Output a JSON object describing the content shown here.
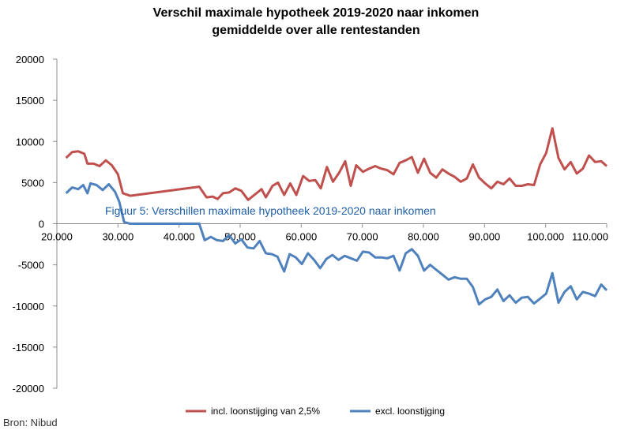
{
  "chart_data": {
    "type": "line",
    "title_lines": [
      "Verschil maximale hypotheek 2019-2020 naar inkomen",
      "gemiddelde over alle rentestanden"
    ],
    "annotation": "Figuur 5: Verschillen maximale hypotheek 2019-2020 naar inkomen",
    "source": "Bron: Nibud",
    "xlim": [
      20000,
      110000
    ],
    "ylim": [
      -20000,
      20000
    ],
    "x_ticks": [
      20000,
      30000,
      40000,
      50000,
      60000,
      70000,
      80000,
      90000,
      100000,
      110000
    ],
    "x_tick_labels": [
      "20.000",
      "30.000",
      "40.000",
      "50.000",
      "60.000",
      "70.000",
      "80.000",
      "90.000",
      "100.000",
      "110.000"
    ],
    "y_ticks": [
      20000,
      15000,
      10000,
      5000,
      0,
      -5000,
      -10000,
      -15000,
      -20000
    ],
    "y_tick_labels": [
      "20000",
      "15000",
      "10000",
      "5000",
      "0",
      "-5000",
      "-10000",
      "-15000",
      "-20000"
    ],
    "grid": false,
    "legend_position": "bottom",
    "series": [
      {
        "name": "incl. loonstijging van 2,5%",
        "color": "#c0504d",
        "points": [
          [
            21500,
            8000
          ],
          [
            22500,
            8700
          ],
          [
            23500,
            8800
          ],
          [
            24500,
            8500
          ],
          [
            25000,
            7300
          ],
          [
            26000,
            7300
          ],
          [
            27000,
            7000
          ],
          [
            28000,
            7700
          ],
          [
            29000,
            7100
          ],
          [
            30000,
            6000
          ],
          [
            30800,
            3700
          ],
          [
            32000,
            3400
          ],
          [
            43300,
            4500
          ],
          [
            44500,
            3200
          ],
          [
            45500,
            3300
          ],
          [
            46300,
            3000
          ],
          [
            47200,
            3700
          ],
          [
            48200,
            3800
          ],
          [
            49200,
            4300
          ],
          [
            50200,
            4000
          ],
          [
            51300,
            2900
          ],
          [
            52500,
            3600
          ],
          [
            53500,
            4200
          ],
          [
            54200,
            3200
          ],
          [
            55300,
            4600
          ],
          [
            56200,
            5000
          ],
          [
            57200,
            3500
          ],
          [
            58200,
            4900
          ],
          [
            59200,
            3500
          ],
          [
            60300,
            5800
          ],
          [
            61300,
            5200
          ],
          [
            62300,
            5300
          ],
          [
            63200,
            4300
          ],
          [
            64200,
            6900
          ],
          [
            65200,
            5100
          ],
          [
            66200,
            6200
          ],
          [
            67200,
            7600
          ],
          [
            68100,
            4600
          ],
          [
            69000,
            7100
          ],
          [
            70100,
            6300
          ],
          [
            71100,
            6700
          ],
          [
            72100,
            7000
          ],
          [
            73100,
            6700
          ],
          [
            74100,
            6500
          ],
          [
            75100,
            6000
          ],
          [
            76100,
            7400
          ],
          [
            77100,
            7700
          ],
          [
            78100,
            8100
          ],
          [
            79100,
            6200
          ],
          [
            80100,
            7900
          ],
          [
            81100,
            6200
          ],
          [
            82100,
            5600
          ],
          [
            83100,
            6600
          ],
          [
            84100,
            6100
          ],
          [
            85100,
            5700
          ],
          [
            86100,
            5100
          ],
          [
            87100,
            5500
          ],
          [
            88100,
            7200
          ],
          [
            89100,
            5600
          ],
          [
            90100,
            4900
          ],
          [
            91100,
            4300
          ],
          [
            92100,
            5100
          ],
          [
            93100,
            4800
          ],
          [
            94100,
            5500
          ],
          [
            95100,
            4600
          ],
          [
            96100,
            4600
          ],
          [
            97100,
            4800
          ],
          [
            98100,
            4700
          ],
          [
            99100,
            7200
          ],
          [
            100100,
            8600
          ],
          [
            101100,
            11600
          ],
          [
            102100,
            8000
          ],
          [
            103100,
            6600
          ],
          [
            104100,
            7500
          ],
          [
            105100,
            6100
          ],
          [
            106100,
            6700
          ],
          [
            107100,
            8300
          ],
          [
            108100,
            7500
          ],
          [
            109100,
            7600
          ],
          [
            110000,
            7000
          ]
        ]
      },
      {
        "name": "excl. loonstijging",
        "color": "#4f81bd",
        "points": [
          [
            21500,
            3700
          ],
          [
            22500,
            4400
          ],
          [
            23500,
            4200
          ],
          [
            24300,
            4700
          ],
          [
            25000,
            3700
          ],
          [
            25500,
            4900
          ],
          [
            26500,
            4700
          ],
          [
            27500,
            4100
          ],
          [
            28500,
            4800
          ],
          [
            29500,
            3900
          ],
          [
            30200,
            2700
          ],
          [
            31000,
            200
          ],
          [
            32000,
            0
          ],
          [
            43300,
            0
          ],
          [
            44200,
            -2000
          ],
          [
            45200,
            -1600
          ],
          [
            46200,
            -2000
          ],
          [
            47200,
            -2100
          ],
          [
            48200,
            -1400
          ],
          [
            49200,
            -2400
          ],
          [
            50200,
            -1900
          ],
          [
            51200,
            -2900
          ],
          [
            52200,
            -3000
          ],
          [
            53200,
            -2100
          ],
          [
            54200,
            -3600
          ],
          [
            55200,
            -3700
          ],
          [
            56100,
            -4000
          ],
          [
            57200,
            -5800
          ],
          [
            58100,
            -3700
          ],
          [
            59100,
            -4100
          ],
          [
            60100,
            -4900
          ],
          [
            61100,
            -3600
          ],
          [
            62100,
            -4400
          ],
          [
            63100,
            -5400
          ],
          [
            64100,
            -4300
          ],
          [
            65100,
            -3800
          ],
          [
            66100,
            -4400
          ],
          [
            67100,
            -3900
          ],
          [
            68100,
            -4200
          ],
          [
            69100,
            -4500
          ],
          [
            70100,
            -3400
          ],
          [
            71100,
            -3500
          ],
          [
            72100,
            -4100
          ],
          [
            73100,
            -4100
          ],
          [
            74100,
            -4200
          ],
          [
            75100,
            -3900
          ],
          [
            76100,
            -5700
          ],
          [
            77100,
            -3600
          ],
          [
            78100,
            -3100
          ],
          [
            79100,
            -3900
          ],
          [
            80100,
            -5700
          ],
          [
            81100,
            -5000
          ],
          [
            82100,
            -5600
          ],
          [
            83100,
            -6200
          ],
          [
            84100,
            -6800
          ],
          [
            85100,
            -6500
          ],
          [
            86100,
            -6700
          ],
          [
            87100,
            -6700
          ],
          [
            88100,
            -7700
          ],
          [
            89100,
            -9800
          ],
          [
            90100,
            -9200
          ],
          [
            91100,
            -8900
          ],
          [
            92100,
            -8000
          ],
          [
            93100,
            -9400
          ],
          [
            94100,
            -8700
          ],
          [
            95100,
            -9600
          ],
          [
            96100,
            -9000
          ],
          [
            97100,
            -8900
          ],
          [
            98100,
            -9700
          ],
          [
            99100,
            -9100
          ],
          [
            100100,
            -8500
          ],
          [
            101100,
            -6000
          ],
          [
            102100,
            -9600
          ],
          [
            103100,
            -8300
          ],
          [
            104100,
            -7600
          ],
          [
            105100,
            -9200
          ],
          [
            106100,
            -8300
          ],
          [
            107100,
            -8500
          ],
          [
            108100,
            -8800
          ],
          [
            109100,
            -7400
          ],
          [
            110000,
            -8100
          ]
        ]
      }
    ]
  }
}
